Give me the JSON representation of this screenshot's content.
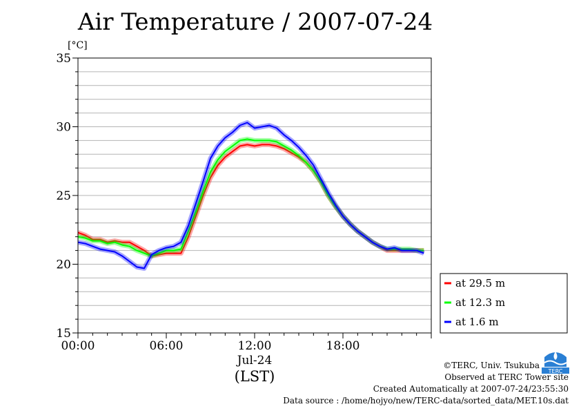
{
  "title": "Air Temperature / 2007-07-24",
  "chart_data": {
    "type": "line",
    "title": "Air Temperature / 2007-07-24",
    "ylabel": "[°C]",
    "xlabel": "(LST)",
    "date_label": "Jul-24",
    "xlim": [
      0,
      24
    ],
    "ylim": [
      15,
      35
    ],
    "yticks": [
      15,
      20,
      25,
      30,
      35
    ],
    "xtick_labels": [
      "00:00",
      "06:00",
      "12:00",
      "18:00"
    ],
    "xtick_values": [
      0,
      6,
      12,
      18
    ],
    "grid": true,
    "legend_position": "right",
    "x": [
      0,
      0.5,
      1,
      1.5,
      2,
      2.5,
      3,
      3.5,
      4,
      4.5,
      5,
      5.5,
      6,
      6.5,
      7,
      7.5,
      8,
      8.5,
      9,
      9.5,
      10,
      10.5,
      11,
      11.5,
      12,
      12.5,
      13,
      13.5,
      14,
      14.5,
      15,
      15.5,
      16,
      16.5,
      17,
      17.5,
      18,
      18.5,
      19,
      19.5,
      20,
      20.5,
      21,
      21.5,
      22,
      22.5,
      23,
      23.5
    ],
    "series": [
      {
        "name": "at 29.5 m",
        "color": "#ff0000",
        "values": [
          22.3,
          22.1,
          21.8,
          21.8,
          21.6,
          21.7,
          21.6,
          21.6,
          21.3,
          21.0,
          20.6,
          20.7,
          20.8,
          20.8,
          20.8,
          22.0,
          23.5,
          25.0,
          26.3,
          27.2,
          27.8,
          28.2,
          28.6,
          28.7,
          28.6,
          28.7,
          28.7,
          28.6,
          28.4,
          28.1,
          27.8,
          27.4,
          26.8,
          26.0,
          25.0,
          24.2,
          23.5,
          22.9,
          22.4,
          22.0,
          21.6,
          21.3,
          21.0,
          21.0,
          21.0,
          21.0,
          21.0,
          21.0
        ]
      },
      {
        "name": "at 12.3 m",
        "color": "#00ff00",
        "values": [
          22.0,
          21.9,
          21.7,
          21.7,
          21.5,
          21.6,
          21.4,
          21.3,
          21.0,
          20.8,
          20.6,
          20.8,
          21.0,
          21.0,
          21.1,
          22.4,
          23.8,
          25.3,
          26.7,
          27.6,
          28.2,
          28.6,
          29.0,
          29.1,
          29.0,
          29.0,
          29.0,
          28.9,
          28.6,
          28.3,
          27.9,
          27.4,
          26.8,
          26.0,
          25.0,
          24.2,
          23.5,
          22.9,
          22.4,
          22.0,
          21.6,
          21.3,
          21.1,
          21.1,
          21.1,
          21.1,
          21.0,
          21.0
        ]
      },
      {
        "name": "at 1.6 m",
        "color": "#0000ff",
        "values": [
          21.6,
          21.5,
          21.3,
          21.1,
          21.0,
          20.9,
          20.6,
          20.2,
          19.8,
          19.7,
          20.7,
          21.0,
          21.2,
          21.3,
          21.6,
          22.8,
          24.4,
          26.0,
          27.7,
          28.6,
          29.2,
          29.6,
          30.1,
          30.3,
          29.9,
          30.0,
          30.1,
          29.9,
          29.4,
          29.0,
          28.5,
          27.9,
          27.2,
          26.2,
          25.2,
          24.3,
          23.5,
          22.9,
          22.4,
          22.0,
          21.6,
          21.3,
          21.1,
          21.2,
          21.0,
          21.0,
          21.0,
          20.8
        ]
      }
    ]
  },
  "footer": {
    "copyright": "©TERC, Univ. Tsukuba",
    "observed": "Observed at TERC Tower site",
    "created": "Created Automatically at 2007-07-24/23:55:30",
    "source": "Data source : /home/hojyo/new/TERC-data/sorted_data/MET.10s.dat"
  },
  "logo": {
    "text": "TERC",
    "color": "#2a7fd4"
  }
}
